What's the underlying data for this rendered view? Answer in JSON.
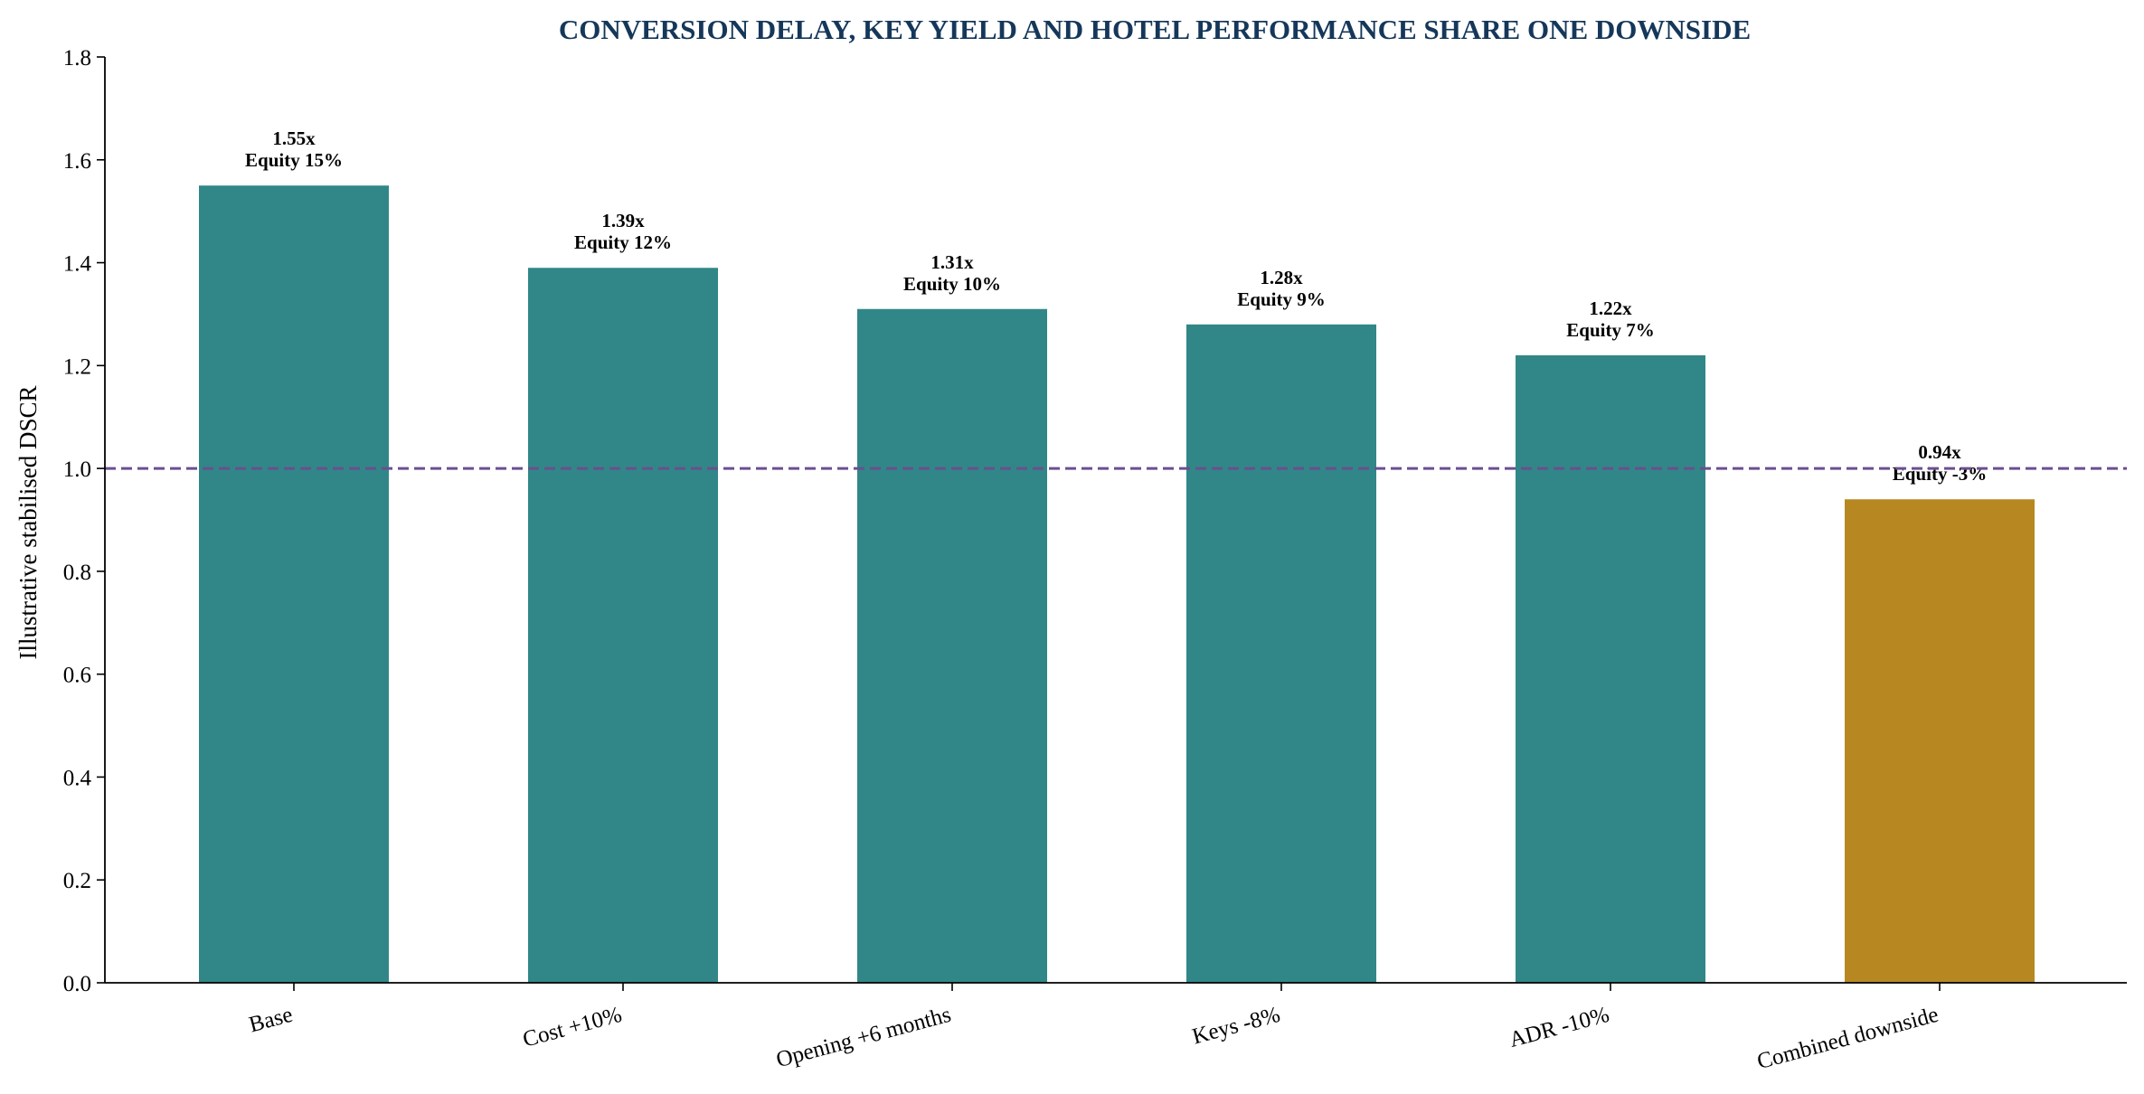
{
  "chart_data": {
    "type": "bar",
    "title": "CONVERSION DELAY, KEY YIELD AND HOTEL PERFORMANCE SHARE ONE DOWNSIDE",
    "xlabel": "",
    "ylabel": "Illustrative stabilised DSCR",
    "ylim": [
      0,
      1.8
    ],
    "yticks": [
      "0.0",
      "0.2",
      "0.4",
      "0.6",
      "0.8",
      "1.0",
      "1.2",
      "1.4",
      "1.6",
      "1.8"
    ],
    "ytick_values": [
      0,
      0.2,
      0.4,
      0.6,
      0.8,
      1.0,
      1.2,
      1.4,
      1.6,
      1.8
    ],
    "categories": [
      "Base",
      "Cost +10%",
      "Opening +6 months",
      "Keys -8%",
      "ADR -10%",
      "Combined downside"
    ],
    "values": [
      1.55,
      1.39,
      1.31,
      1.28,
      1.22,
      0.94
    ],
    "value_labels": [
      "1.55x",
      "1.39x",
      "1.31x",
      "1.28x",
      "1.22x",
      "0.94x"
    ],
    "equity_labels": [
      "Equity 15%",
      "Equity 12%",
      "Equity 10%",
      "Equity 9%",
      "Equity 7%",
      "Equity -3%"
    ],
    "reference_line": {
      "y": 1.0,
      "style": "dashed"
    },
    "colors": {
      "bar": "#318787",
      "highlight_bar": "#B78822",
      "reference_line": "#6B4F8F",
      "title": "#15375A"
    },
    "highlight_index": 5,
    "grid": false,
    "legend": "none"
  }
}
